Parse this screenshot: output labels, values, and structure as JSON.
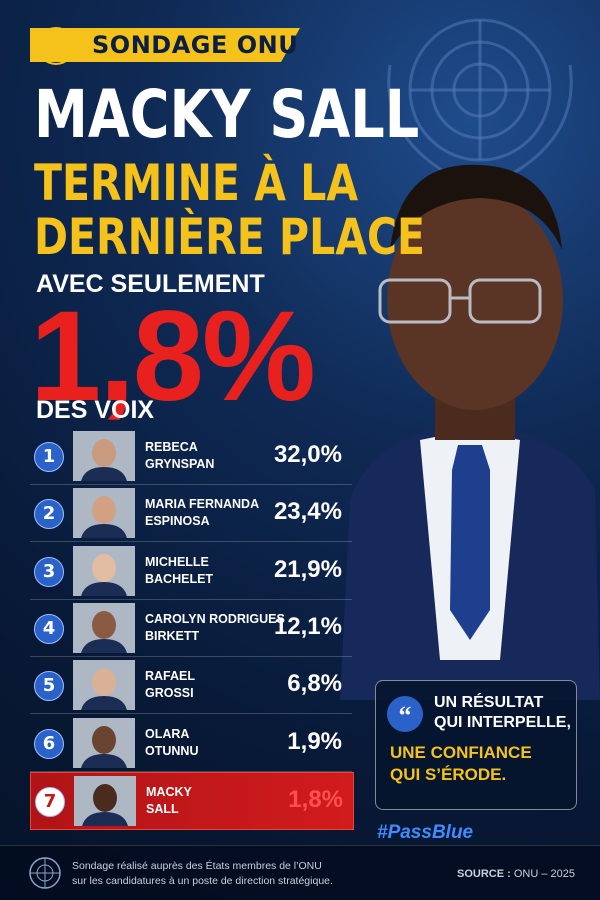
{
  "badge": "SONDAGE ONU",
  "headline": {
    "line1": "MACKY SALL",
    "line2": "TERMINE À LA",
    "line3": "DERNIÈRE PLACE"
  },
  "subline": "AVEC SEULEMENT",
  "big_figure": "1,8%",
  "big_figure_caption": "DES VOIX",
  "ranking": [
    {
      "rank": "1",
      "name_lines": [
        "REBECA",
        "GRYNSPAN"
      ],
      "score": "32,0%"
    },
    {
      "rank": "2",
      "name_lines": [
        "MARIA FERNANDA",
        "ESPINOSA"
      ],
      "score": "23,4%"
    },
    {
      "rank": "3",
      "name_lines": [
        "MICHELLE",
        "BACHELET"
      ],
      "score": "21,9%"
    },
    {
      "rank": "4",
      "name_lines": [
        "CAROLYN RODRIGUES",
        "BIRKETT"
      ],
      "score": "12,1%"
    },
    {
      "rank": "5",
      "name_lines": [
        "RAFAEL",
        "GROSSI"
      ],
      "score": "6,8%"
    },
    {
      "rank": "6",
      "name_lines": [
        "OLARA",
        "OTUNNU"
      ],
      "score": "1,9%"
    },
    {
      "rank": "7",
      "name_lines": [
        "MACKY",
        "SALL"
      ],
      "score": "1,8%"
    }
  ],
  "callout": {
    "lines": [
      "UN RÉSULTAT",
      "QUI INTERPELLE,"
    ],
    "highlight": [
      "UNE CONFIANCE",
      "QUI S’ÉRODE."
    ]
  },
  "hashtag": "#PassBlue",
  "footer": {
    "note": [
      "Sondage réalisé auprès des États membres de l’ONU",
      "sur les candidatures à un poste de direction stratégique."
    ],
    "source_label": "SOURCE :",
    "source": "ONU – 2025"
  }
}
